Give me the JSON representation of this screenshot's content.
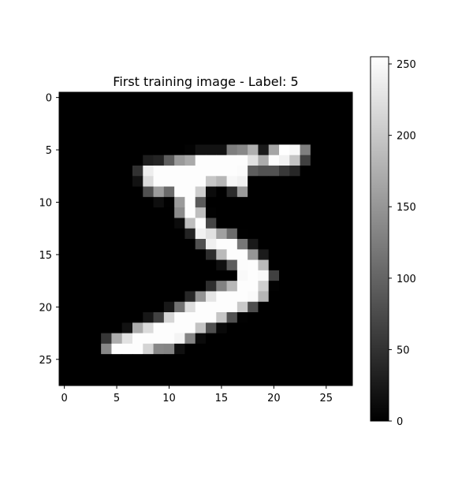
{
  "chart_data": {
    "type": "heatmap",
    "title": "First training image - Label: 5",
    "xlabel": "",
    "ylabel": "",
    "colormap": "gray",
    "xlim": [
      -0.5,
      27.5
    ],
    "ylim": [
      27.5,
      -0.5
    ],
    "x_ticks": [
      0,
      5,
      10,
      15,
      20,
      25
    ],
    "y_ticks": [
      0,
      5,
      10,
      15,
      20,
      25
    ],
    "colorbar": {
      "range": [
        0,
        255
      ],
      "ticks": [
        0,
        50,
        100,
        150,
        200,
        250
      ]
    },
    "grid": false,
    "rows": 28,
    "cols": 28,
    "pixels": [
      [
        0,
        0,
        0,
        0,
        0,
        0,
        0,
        0,
        0,
        0,
        0,
        0,
        0,
        0,
        0,
        0,
        0,
        0,
        0,
        0,
        0,
        0,
        0,
        0,
        0,
        0,
        0,
        0
      ],
      [
        0,
        0,
        0,
        0,
        0,
        0,
        0,
        0,
        0,
        0,
        0,
        0,
        0,
        0,
        0,
        0,
        0,
        0,
        0,
        0,
        0,
        0,
        0,
        0,
        0,
        0,
        0,
        0
      ],
      [
        0,
        0,
        0,
        0,
        0,
        0,
        0,
        0,
        0,
        0,
        0,
        0,
        0,
        0,
        0,
        0,
        0,
        0,
        0,
        0,
        0,
        0,
        0,
        0,
        0,
        0,
        0,
        0
      ],
      [
        0,
        0,
        0,
        0,
        0,
        0,
        0,
        0,
        0,
        0,
        0,
        0,
        0,
        0,
        0,
        0,
        0,
        0,
        0,
        0,
        0,
        0,
        0,
        0,
        0,
        0,
        0,
        0
      ],
      [
        0,
        0,
        0,
        0,
        0,
        0,
        0,
        0,
        0,
        0,
        0,
        0,
        0,
        0,
        0,
        0,
        0,
        0,
        0,
        0,
        0,
        0,
        0,
        0,
        0,
        0,
        0,
        0
      ],
      [
        0,
        0,
        0,
        0,
        0,
        0,
        0,
        0,
        0,
        0,
        0,
        0,
        3,
        18,
        18,
        18,
        126,
        136,
        175,
        26,
        166,
        255,
        247,
        127,
        0,
        0,
        0,
        0
      ],
      [
        0,
        0,
        0,
        0,
        0,
        0,
        0,
        0,
        30,
        36,
        94,
        154,
        170,
        253,
        253,
        253,
        253,
        253,
        225,
        172,
        253,
        242,
        195,
        64,
        0,
        0,
        0,
        0
      ],
      [
        0,
        0,
        0,
        0,
        0,
        0,
        0,
        49,
        238,
        253,
        253,
        253,
        253,
        253,
        253,
        253,
        253,
        251,
        93,
        82,
        82,
        56,
        39,
        0,
        0,
        0,
        0,
        0
      ],
      [
        0,
        0,
        0,
        0,
        0,
        0,
        0,
        18,
        219,
        253,
        253,
        253,
        253,
        253,
        198,
        182,
        247,
        241,
        0,
        0,
        0,
        0,
        0,
        0,
        0,
        0,
        0,
        0
      ],
      [
        0,
        0,
        0,
        0,
        0,
        0,
        0,
        0,
        80,
        156,
        107,
        253,
        253,
        205,
        11,
        0,
        43,
        154,
        0,
        0,
        0,
        0,
        0,
        0,
        0,
        0,
        0,
        0
      ],
      [
        0,
        0,
        0,
        0,
        0,
        0,
        0,
        0,
        0,
        14,
        1,
        154,
        253,
        90,
        0,
        0,
        0,
        0,
        0,
        0,
        0,
        0,
        0,
        0,
        0,
        0,
        0,
        0
      ],
      [
        0,
        0,
        0,
        0,
        0,
        0,
        0,
        0,
        0,
        0,
        0,
        139,
        253,
        190,
        2,
        0,
        0,
        0,
        0,
        0,
        0,
        0,
        0,
        0,
        0,
        0,
        0,
        0
      ],
      [
        0,
        0,
        0,
        0,
        0,
        0,
        0,
        0,
        0,
        0,
        0,
        11,
        190,
        253,
        70,
        0,
        0,
        0,
        0,
        0,
        0,
        0,
        0,
        0,
        0,
        0,
        0,
        0
      ],
      [
        0,
        0,
        0,
        0,
        0,
        0,
        0,
        0,
        0,
        0,
        0,
        0,
        35,
        241,
        225,
        160,
        108,
        1,
        0,
        0,
        0,
        0,
        0,
        0,
        0,
        0,
        0,
        0
      ],
      [
        0,
        0,
        0,
        0,
        0,
        0,
        0,
        0,
        0,
        0,
        0,
        0,
        0,
        81,
        240,
        253,
        253,
        119,
        25,
        0,
        0,
        0,
        0,
        0,
        0,
        0,
        0,
        0
      ],
      [
        0,
        0,
        0,
        0,
        0,
        0,
        0,
        0,
        0,
        0,
        0,
        0,
        0,
        0,
        45,
        186,
        253,
        253,
        150,
        27,
        0,
        0,
        0,
        0,
        0,
        0,
        0,
        0
      ],
      [
        0,
        0,
        0,
        0,
        0,
        0,
        0,
        0,
        0,
        0,
        0,
        0,
        0,
        0,
        0,
        16,
        93,
        252,
        253,
        187,
        0,
        0,
        0,
        0,
        0,
        0,
        0,
        0
      ],
      [
        0,
        0,
        0,
        0,
        0,
        0,
        0,
        0,
        0,
        0,
        0,
        0,
        0,
        0,
        0,
        0,
        0,
        249,
        253,
        249,
        64,
        0,
        0,
        0,
        0,
        0,
        0,
        0
      ],
      [
        0,
        0,
        0,
        0,
        0,
        0,
        0,
        0,
        0,
        0,
        0,
        0,
        0,
        0,
        46,
        130,
        183,
        253,
        253,
        207,
        2,
        0,
        0,
        0,
        0,
        0,
        0,
        0
      ],
      [
        0,
        0,
        0,
        0,
        0,
        0,
        0,
        0,
        0,
        0,
        0,
        0,
        39,
        148,
        229,
        253,
        253,
        253,
        250,
        182,
        0,
        0,
        0,
        0,
        0,
        0,
        0,
        0
      ],
      [
        0,
        0,
        0,
        0,
        0,
        0,
        0,
        0,
        0,
        0,
        24,
        114,
        221,
        253,
        253,
        253,
        253,
        201,
        78,
        0,
        0,
        0,
        0,
        0,
        0,
        0,
        0,
        0
      ],
      [
        0,
        0,
        0,
        0,
        0,
        0,
        0,
        0,
        23,
        66,
        213,
        253,
        253,
        253,
        253,
        198,
        81,
        2,
        0,
        0,
        0,
        0,
        0,
        0,
        0,
        0,
        0,
        0
      ],
      [
        0,
        0,
        0,
        0,
        0,
        0,
        18,
        171,
        219,
        253,
        253,
        253,
        253,
        195,
        80,
        9,
        0,
        0,
        0,
        0,
        0,
        0,
        0,
        0,
        0,
        0,
        0,
        0
      ],
      [
        0,
        0,
        0,
        0,
        55,
        172,
        226,
        253,
        253,
        253,
        253,
        244,
        133,
        11,
        0,
        0,
        0,
        0,
        0,
        0,
        0,
        0,
        0,
        0,
        0,
        0,
        0,
        0
      ],
      [
        0,
        0,
        0,
        0,
        136,
        253,
        253,
        253,
        212,
        135,
        132,
        16,
        0,
        0,
        0,
        0,
        0,
        0,
        0,
        0,
        0,
        0,
        0,
        0,
        0,
        0,
        0,
        0
      ],
      [
        0,
        0,
        0,
        0,
        0,
        0,
        0,
        0,
        0,
        0,
        0,
        0,
        0,
        0,
        0,
        0,
        0,
        0,
        0,
        0,
        0,
        0,
        0,
        0,
        0,
        0,
        0,
        0
      ],
      [
        0,
        0,
        0,
        0,
        0,
        0,
        0,
        0,
        0,
        0,
        0,
        0,
        0,
        0,
        0,
        0,
        0,
        0,
        0,
        0,
        0,
        0,
        0,
        0,
        0,
        0,
        0,
        0
      ],
      [
        0,
        0,
        0,
        0,
        0,
        0,
        0,
        0,
        0,
        0,
        0,
        0,
        0,
        0,
        0,
        0,
        0,
        0,
        0,
        0,
        0,
        0,
        0,
        0,
        0,
        0,
        0,
        0
      ]
    ]
  }
}
